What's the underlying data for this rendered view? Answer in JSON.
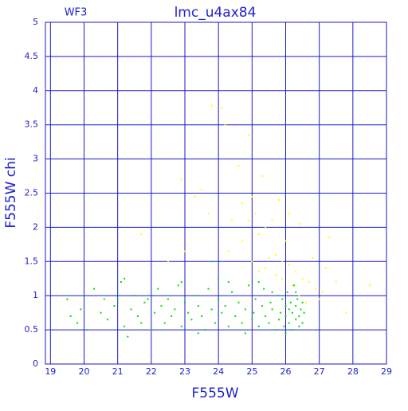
{
  "chart_data": {
    "type": "scatter",
    "title": "lmc_u4ax84",
    "subtitle": "WF3",
    "x_label": "F555W",
    "y_label": "F555W chi",
    "xlim": [
      18.85,
      29
    ],
    "ylim": [
      0,
      5
    ],
    "xticks": [
      19,
      20,
      21,
      22,
      23,
      24,
      25,
      26,
      27,
      28,
      29
    ],
    "yticks": [
      0,
      0.5,
      1,
      1.5,
      2,
      2.5,
      3,
      3.5,
      4,
      4.5,
      5
    ],
    "grid": true,
    "series": [
      {
        "color": "#00dd00",
        "x": [
          19.5,
          19.6,
          19.8,
          20.1,
          20.3,
          20.5,
          20.7,
          20.9,
          21.0,
          21.1,
          21.2,
          21.3,
          21.4,
          21.5,
          21.6,
          21.8,
          21.9,
          22.0,
          22.1,
          22.2,
          22.3,
          22.4,
          22.5,
          22.6,
          22.7,
          22.8,
          22.9,
          23.0,
          23.1,
          23.2,
          23.3,
          23.4,
          23.5,
          23.6,
          23.7,
          23.8,
          23.9,
          24.0,
          24.1,
          24.2,
          24.3,
          24.4,
          24.5,
          24.6,
          24.7,
          24.8,
          24.9,
          25.0,
          25.05,
          25.1,
          25.2,
          25.3,
          25.35,
          25.4,
          25.5,
          25.55,
          25.6,
          25.7,
          25.75,
          25.8,
          25.85,
          25.9,
          25.95,
          26.0,
          26.0,
          26.05,
          26.1,
          26.1,
          26.15,
          26.2,
          26.2,
          26.25,
          26.3,
          26.3,
          26.35,
          26.4,
          26.4,
          26.45,
          26.5,
          26.5,
          26.55,
          21.2,
          22.9,
          23.8,
          24.0,
          19.9,
          20.6,
          21.7,
          23.4,
          24.8,
          25.6,
          26.0,
          26.3,
          25.2,
          24.3
        ],
        "values": [
          0.95,
          0.7,
          0.6,
          0.5,
          1.1,
          0.75,
          0.65,
          0.85,
          0.95,
          1.2,
          0.55,
          0.4,
          0.8,
          1.0,
          0.7,
          0.9,
          0.95,
          0.5,
          0.75,
          1.1,
          0.85,
          0.6,
          0.95,
          0.7,
          0.8,
          1.15,
          0.55,
          0.9,
          0.75,
          0.65,
          1.0,
          0.85,
          0.7,
          0.5,
          1.1,
          0.8,
          0.6,
          0.95,
          0.75,
          0.85,
          0.55,
          1.05,
          0.7,
          0.9,
          0.6,
          0.8,
          1.15,
          0.65,
          0.75,
          0.95,
          0.55,
          0.85,
          1.1,
          0.7,
          0.6,
          0.9,
          0.8,
          0.5,
          1.0,
          0.65,
          0.75,
          0.95,
          0.55,
          0.85,
          0.7,
          1.05,
          0.6,
          0.8,
          0.9,
          0.5,
          0.75,
          1.15,
          0.65,
          0.85,
          0.95,
          0.55,
          0.7,
          0.8,
          0.6,
          0.9,
          0.75,
          1.25,
          1.2,
          1.5,
          1.25,
          0.8,
          0.95,
          0.6,
          0.45,
          0.45,
          1.05,
          0.45,
          1.05,
          1.2,
          1.2
        ]
      },
      {
        "color": "#ffff00",
        "x": [
          23.8,
          24.1,
          24.2,
          24.6,
          24.9,
          25.0,
          24.7,
          25.1,
          25.3,
          24.9,
          25.2,
          25.4,
          25.6,
          25.8,
          26.0,
          26.1,
          26.4,
          25.5,
          25.7,
          25.9,
          26.1,
          26.3,
          26.5,
          26.7,
          26.9,
          27.0,
          27.2,
          27.3,
          27.5,
          27.8,
          28.5,
          26.2,
          26.4,
          26.6,
          25.7,
          25.9,
          25.4,
          25.2,
          24.7,
          24.4,
          23.3,
          23.5,
          23.7,
          22.9,
          21.7,
          22.5,
          23.0,
          24.3,
          25.0,
          26.8,
          27.1
        ],
        "values": [
          3.78,
          3.75,
          3.5,
          2.9,
          3.35,
          2.45,
          2.35,
          2.2,
          2.75,
          2.1,
          1.9,
          2.0,
          2.1,
          2.4,
          1.8,
          2.2,
          2.05,
          1.55,
          1.6,
          1.5,
          1.45,
          1.35,
          1.25,
          1.2,
          1.1,
          0.95,
          1.4,
          1.85,
          1.2,
          0.75,
          1.15,
          1.15,
          1.0,
          0.9,
          1.3,
          1.25,
          1.4,
          1.35,
          1.8,
          2.1,
          2.45,
          2.55,
          2.2,
          2.7,
          1.9,
          1.5,
          1.65,
          1.65,
          1.5,
          1.55,
          1.05
        ]
      }
    ]
  }
}
